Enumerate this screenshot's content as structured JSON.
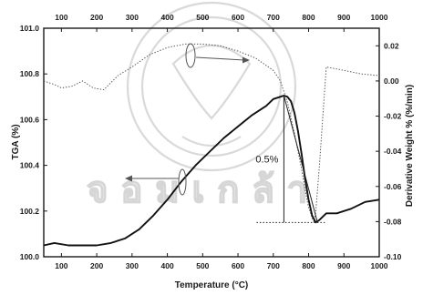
{
  "chart_data": {
    "type": "line",
    "title": "",
    "xlabel": "Temperature (°C)",
    "ylabel": "TGA (%)",
    "y2label": "Derivative Weight % (%/min)",
    "xlim": [
      50,
      1000
    ],
    "ylim": [
      100.0,
      101.0
    ],
    "y2lim": [
      -0.1,
      0.03
    ],
    "x_ticks": [
      100,
      200,
      300,
      400,
      500,
      600,
      700,
      800,
      900,
      1000
    ],
    "x_tick_labels": [
      "100",
      "200",
      "300",
      "400",
      "500",
      "600",
      "700",
      "800",
      "900",
      "1000"
    ],
    "y_ticks": [
      100.0,
      100.2,
      100.4,
      100.6,
      100.8,
      101.0
    ],
    "y_tick_labels": [
      "100.0",
      "100.2",
      "100.4",
      "100.6",
      "100.8",
      "101.0"
    ],
    "y2_ticks": [
      -0.1,
      -0.08,
      -0.06,
      -0.04,
      -0.02,
      0.0,
      0.02
    ],
    "y2_tick_labels": [
      "-0.10",
      "-0.08",
      "-0.06",
      "-0.04",
      "-0.02",
      "0.00",
      "0.02"
    ],
    "grid": false,
    "legend": "none",
    "annotation": "0.5%",
    "series": [
      {
        "axis": "left",
        "style": "solid",
        "x": [
          50,
          80,
          120,
          160,
          200,
          240,
          280,
          320,
          360,
          400,
          440,
          480,
          520,
          560,
          600,
          640,
          680,
          700,
          720,
          730,
          740,
          750,
          760,
          770,
          780,
          790,
          800,
          810,
          820,
          830,
          850,
          880,
          920,
          960,
          1000
        ],
        "y": [
          100.05,
          100.06,
          100.05,
          100.05,
          100.05,
          100.06,
          100.08,
          100.12,
          100.18,
          100.25,
          100.33,
          100.4,
          100.46,
          100.52,
          100.57,
          100.62,
          100.66,
          100.69,
          100.7,
          100.705,
          100.7,
          100.68,
          100.63,
          100.55,
          100.45,
          100.34,
          100.25,
          100.18,
          100.15,
          100.16,
          100.19,
          100.19,
          100.21,
          100.24,
          100.25
        ]
      },
      {
        "axis": "right",
        "style": "dotted",
        "x": [
          50,
          80,
          100,
          130,
          160,
          190,
          220,
          260,
          300,
          350,
          400,
          450,
          500,
          550,
          600,
          650,
          700,
          720,
          740,
          760,
          780,
          790,
          800,
          810,
          815,
          820,
          830,
          850,
          900,
          950,
          1000
        ],
        "y": [
          0.0,
          -0.002,
          -0.004,
          -0.003,
          0.0,
          -0.004,
          -0.005,
          0.003,
          0.008,
          0.015,
          0.019,
          0.021,
          0.021,
          0.02,
          0.017,
          0.013,
          0.006,
          0.0,
          -0.012,
          -0.03,
          -0.05,
          -0.062,
          -0.072,
          -0.078,
          -0.08,
          -0.075,
          -0.05,
          0.008,
          0.006,
          0.004,
          0.003
        ]
      }
    ]
  }
}
